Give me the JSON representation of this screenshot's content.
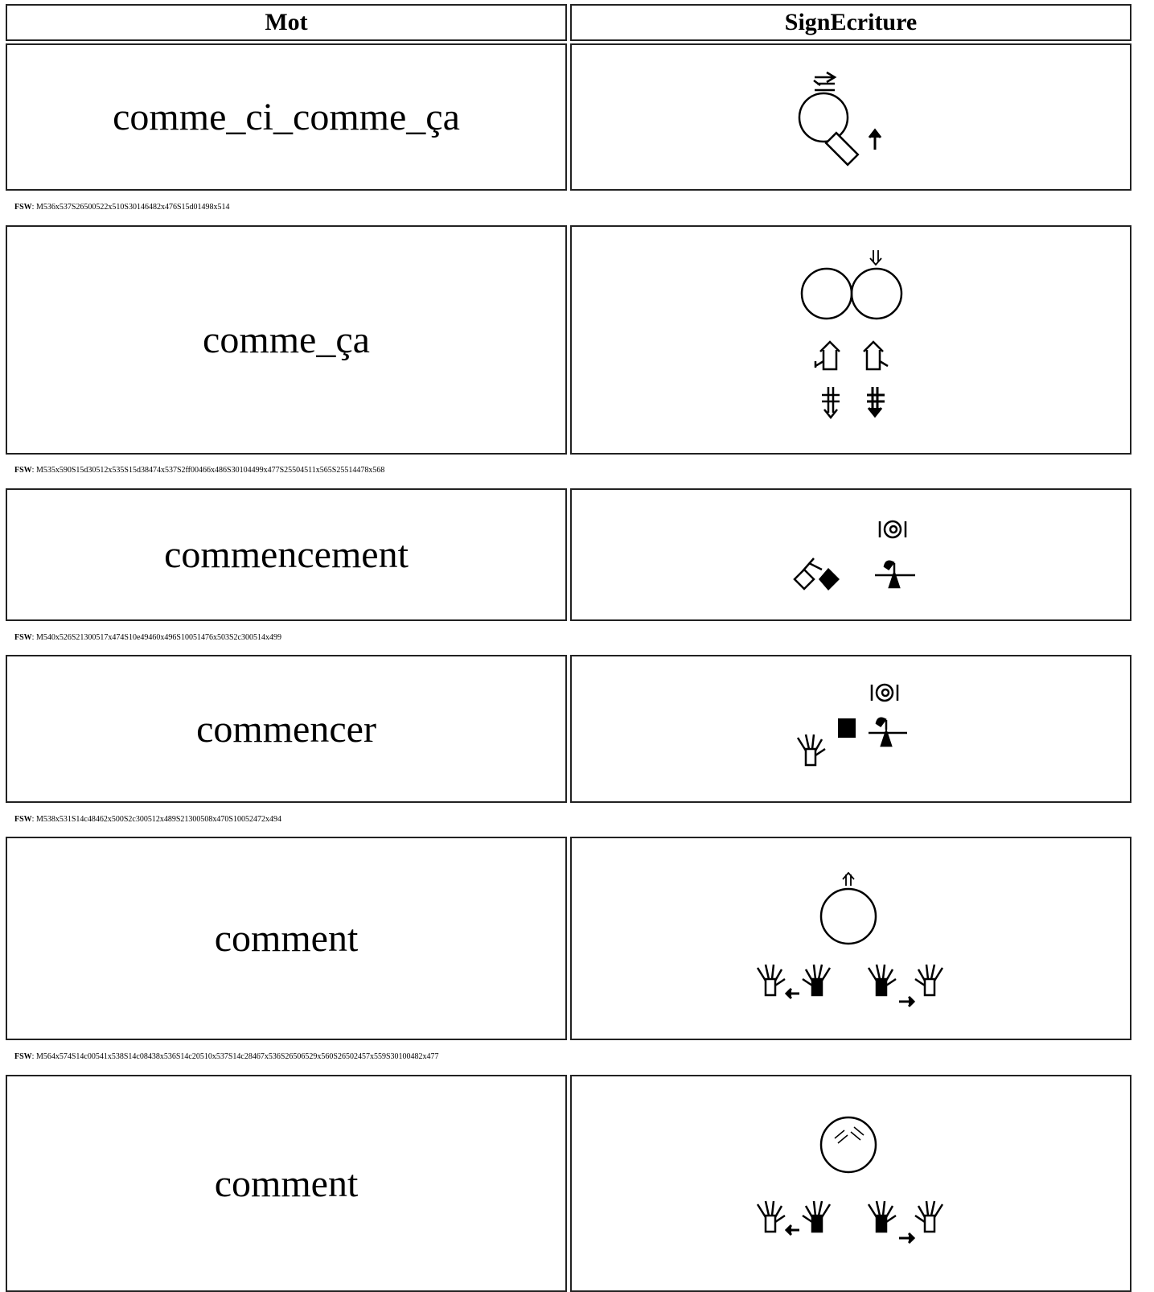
{
  "table": {
    "columns": [
      "Mot",
      "SignEcriture"
    ],
    "fsw_label": "FSW",
    "fsw_separator": ": ",
    "rows": [
      {
        "word": "comme_ci_comme_ça",
        "fsw": "M536x537S26500522x510S30146482x476S15d01498x514"
      },
      {
        "word": "comme_ça",
        "fsw": "M535x590S15d30512x535S15d38474x537S2ff00466x486S30104499x477S25504511x565S25514478x568"
      },
      {
        "word": "commencement",
        "fsw": "M540x526S21300517x474S10e49460x496S10051476x503S2c300514x499"
      },
      {
        "word": "commencer",
        "fsw": "M538x531S14c48462x500S2c300512x489S21300508x470S10052472x494"
      },
      {
        "word": "comment",
        "fsw": "M564x574S14c00541x538S14c08438x536S14c20510x537S14c28467x536S26506529x560S26502457x559S30100482x477"
      },
      {
        "word": "comment"
      }
    ]
  }
}
